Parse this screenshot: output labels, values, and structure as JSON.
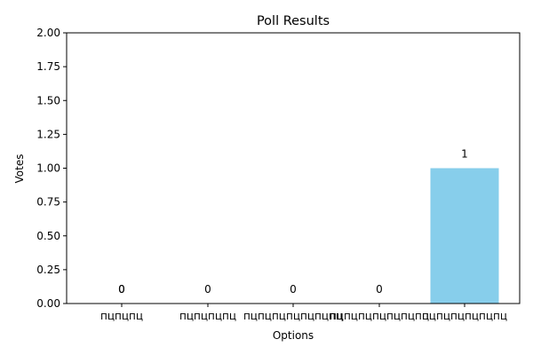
{
  "chart_data": {
    "type": "bar",
    "title": "Poll Results",
    "xlabel": "Options",
    "ylabel": "Votes",
    "categories": [
      "пцпцпц",
      "пцпцпцпц",
      "пцпцпцпцпцпцпц",
      "пцпцпцпцпцпцпц",
      "пцпцпцпцпцпц"
    ],
    "values": [
      0,
      0,
      0,
      0,
      1
    ],
    "data_labels": [
      "0",
      "0",
      "0",
      "0",
      "1"
    ],
    "extra_labels": [
      {
        "category_index": 0,
        "text": "0"
      }
    ],
    "ylim": [
      0,
      2
    ],
    "yticks": [
      "0.00",
      "0.25",
      "0.50",
      "0.75",
      "1.00",
      "1.25",
      "1.50",
      "1.75",
      "2.00"
    ],
    "bar_color": "#87ceeb",
    "grid": false,
    "legend": "none"
  }
}
